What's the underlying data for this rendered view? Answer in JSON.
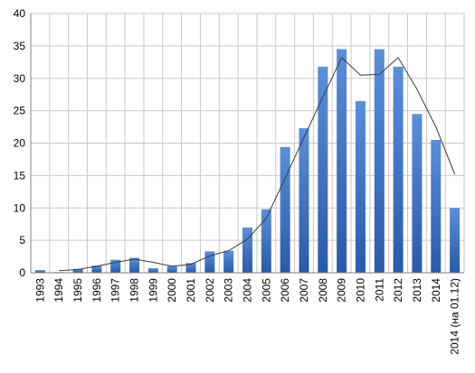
{
  "chart_data": {
    "type": "bar",
    "categories": [
      "1993",
      "1994",
      "1995",
      "1996",
      "1997",
      "1998",
      "1999",
      "2000",
      "2001",
      "2002",
      "2003",
      "2004",
      "2005",
      "2006",
      "2007",
      "2008",
      "2009",
      "2010",
      "2011",
      "2012",
      "2013",
      "2014",
      "2014 (на 01.12)"
    ],
    "series": [
      {
        "type": "bar",
        "values": [
          0.4,
          0.1,
          0.6,
          1.1,
          2.0,
          2.3,
          0.7,
          1.0,
          1.5,
          3.3,
          3.4,
          7.0,
          9.8,
          19.4,
          22.3,
          31.8,
          34.5,
          26.5,
          34.5,
          31.8,
          24.5,
          20.5,
          10.0
        ]
      },
      {
        "type": "line",
        "values": [
          null,
          0.3,
          0.5,
          1.0,
          1.6,
          2.1,
          1.6,
          1.0,
          1.3,
          2.6,
          3.4,
          5.2,
          8.4,
          14.6,
          20.9,
          27.1,
          33.2,
          30.5,
          30.6,
          33.2,
          28.3,
          22.5,
          15.2
        ]
      }
    ],
    "ylim": [
      0,
      40
    ],
    "yticks": [
      0,
      5,
      10,
      15,
      20,
      25,
      30,
      35,
      40
    ],
    "grid": true,
    "colors": {
      "bar_light": "#5b8fd6",
      "bar_dark": "#2a5aa8",
      "line": "#3a3a3a",
      "grid": "#c8c8c8",
      "axis": "#808080"
    }
  }
}
